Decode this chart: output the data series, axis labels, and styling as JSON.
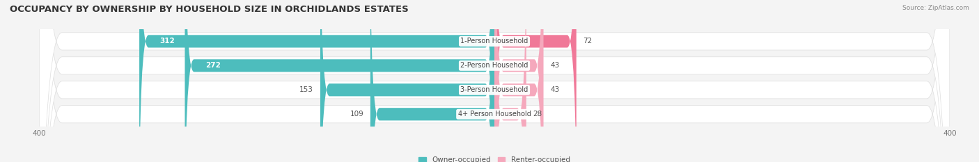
{
  "title": "OCCUPANCY BY OWNERSHIP BY HOUSEHOLD SIZE IN ORCHIDLANDS ESTATES",
  "source": "Source: ZipAtlas.com",
  "categories": [
    "1-Person Household",
    "2-Person Household",
    "3-Person Household",
    "4+ Person Household"
  ],
  "owner_values": [
    312,
    272,
    153,
    109
  ],
  "renter_values": [
    72,
    43,
    43,
    28
  ],
  "owner_color": "#4dbdbd",
  "renter_color": "#f07898",
  "renter_color_light": "#f5a8bc",
  "bg_color": "#f4f4f4",
  "row_bg_color": "#efefef",
  "row_pill_color": "#e8e8e8",
  "axis_limit": 400,
  "title_fontsize": 9.5,
  "value_fontsize": 7.5,
  "cat_fontsize": 7.0,
  "bar_height": 0.52,
  "legend_owner": "Owner-occupied",
  "legend_renter": "Renter-occupied"
}
